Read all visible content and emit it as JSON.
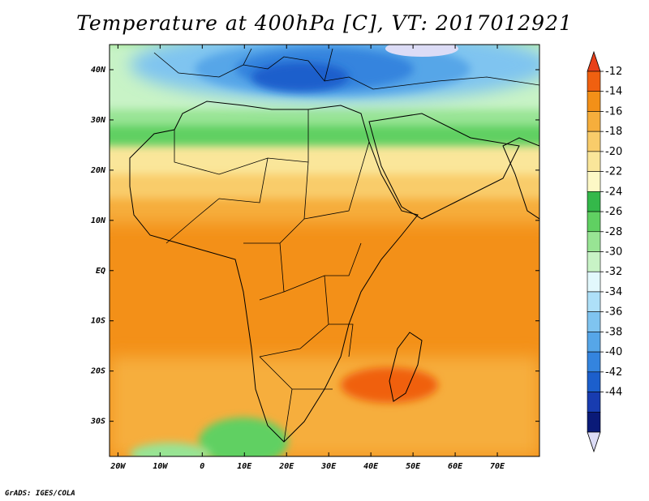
{
  "title": "Temperature at 400hPa [C], VT: 2017012921",
  "footer": "GrADS: IGES/COLA",
  "map": {
    "lon_range": [
      -22,
      80
    ],
    "lat_range": [
      -37,
      45
    ],
    "lat_ticks": [
      {
        "lat": 40,
        "label": "40N"
      },
      {
        "lat": 30,
        "label": "30N"
      },
      {
        "lat": 20,
        "label": "20N"
      },
      {
        "lat": 10,
        "label": "10N"
      },
      {
        "lat": 0,
        "label": "EQ"
      },
      {
        "lat": -10,
        "label": "10S"
      },
      {
        "lat": -20,
        "label": "20S"
      },
      {
        "lat": -30,
        "label": "30S"
      }
    ],
    "lon_ticks": [
      {
        "lon": -20,
        "label": "20W"
      },
      {
        "lon": -10,
        "label": "10W"
      },
      {
        "lon": 0,
        "label": "0"
      },
      {
        "lon": 10,
        "label": "10E"
      },
      {
        "lon": 20,
        "label": "20E"
      },
      {
        "lon": 30,
        "label": "30E"
      },
      {
        "lon": 40,
        "label": "40E"
      },
      {
        "lon": 50,
        "label": "50E"
      },
      {
        "lon": 60,
        "label": "60E"
      },
      {
        "lon": 70,
        "label": "70E"
      }
    ]
  },
  "colorbar": {
    "labels": [
      "-12",
      "-14",
      "-16",
      "-18",
      "-20",
      "-22",
      "-24",
      "-26",
      "-28",
      "-30",
      "-32",
      "-34",
      "-36",
      "-38",
      "-40",
      "-42",
      "-44"
    ],
    "top_arrow_color": "#e8401a",
    "bottom_arrow_color": "#dcdcf6",
    "bins": [
      {
        "color": "#f06010"
      },
      {
        "color": "#f39018"
      },
      {
        "color": "#f6ae3c"
      },
      {
        "color": "#f9cc6a"
      },
      {
        "color": "#fae69a"
      },
      {
        "color": "#fdf8c6"
      },
      {
        "color": "#34b84a"
      },
      {
        "color": "#60d062"
      },
      {
        "color": "#98e494"
      },
      {
        "color": "#c8f3c6"
      },
      {
        "color": "#e2f8fc"
      },
      {
        "color": "#aee0f8"
      },
      {
        "color": "#7fc4f0"
      },
      {
        "color": "#56a6e8"
      },
      {
        "color": "#3484de"
      },
      {
        "color": "#1c5fcc"
      },
      {
        "color": "#183cb0"
      },
      {
        "color": "#0a1a78"
      }
    ]
  },
  "legend_colors": {
    "deep_orange": "#f06010",
    "orange": "#f39018",
    "light_orange": "#f6ae3c",
    "yellow": "#fae69a",
    "green": "#60d062",
    "light_green": "#98e494",
    "blue": "#3484de"
  }
}
